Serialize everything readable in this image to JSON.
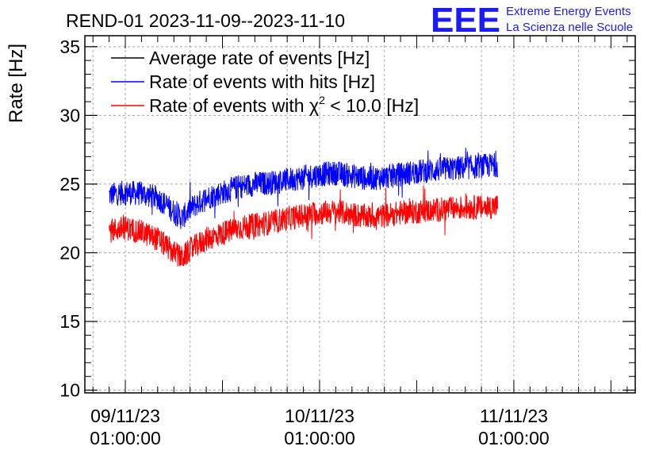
{
  "header": {
    "title": "REND-01 2023-11-09--2023-11-10",
    "logo_text": "EEE",
    "logo_line1": "Extreme Energy Events",
    "logo_line2": "La Scienza nelle Scuole"
  },
  "chart_data": {
    "type": "line",
    "title": "REND-01 2023-11-09--2023-11-10",
    "ylabel": "Rate [Hz]",
    "xlabel": "",
    "ylim": [
      9.8,
      35.8
    ],
    "xlim_hours": [
      -5,
      63
    ],
    "grid": true,
    "legend_position": "top-left",
    "y_ticks": [
      "10",
      "15",
      "20",
      "25",
      "30",
      "35"
    ],
    "y_tick_values": [
      10,
      15,
      20,
      25,
      30,
      35
    ],
    "x_ticks": [
      {
        "hour": 0,
        "date": "09/11/23",
        "time": "01:00:00"
      },
      {
        "hour": 24,
        "date": "10/11/23",
        "time": "01:00:00"
      },
      {
        "hour": 48,
        "date": "11/11/23",
        "time": "01:00:00"
      }
    ],
    "legend": [
      {
        "label": "Average rate of events [Hz]",
        "color": "#000000"
      },
      {
        "label": "Rate of events with hits [Hz]",
        "color": "#0000ff"
      },
      {
        "label": "Rate of events with",
        "chi_symbol": "χ",
        "superscript": "2",
        "label_suffix": " < 10.0 [Hz]",
        "color": "#ff0000"
      }
    ],
    "series": [
      {
        "name": "Rate of events with hits [Hz]",
        "color": "#0000ff",
        "x_hours": [
          -2,
          0,
          2,
          4,
          6,
          7,
          8,
          10,
          12,
          14,
          16,
          18,
          20,
          22,
          24,
          26,
          28,
          30,
          32,
          34,
          36,
          38,
          40,
          42,
          44,
          46
        ],
        "values": [
          24.2,
          24.4,
          24.3,
          24.0,
          23.0,
          22.5,
          23.2,
          24.0,
          24.4,
          24.8,
          25.0,
          25.1,
          25.3,
          25.5,
          25.7,
          25.8,
          25.6,
          25.4,
          25.5,
          25.7,
          25.9,
          26.0,
          26.1,
          26.2,
          26.3,
          26.4
        ],
        "noise_amplitude": 0.9
      },
      {
        "name": "Rate of events with χ2 < 10.0 [Hz]",
        "color": "#ff0000",
        "x_hours": [
          -2,
          0,
          2,
          4,
          6,
          7,
          8,
          10,
          12,
          14,
          16,
          18,
          20,
          22,
          24,
          26,
          28,
          30,
          32,
          34,
          36,
          38,
          40,
          42,
          44,
          46
        ],
        "values": [
          21.6,
          21.8,
          21.5,
          21.0,
          20.0,
          19.6,
          20.2,
          21.0,
          21.4,
          21.8,
          22.0,
          22.2,
          22.5,
          22.7,
          22.9,
          23.0,
          22.8,
          22.6,
          22.7,
          22.9,
          23.0,
          23.1,
          23.2,
          23.3,
          23.3,
          23.4
        ],
        "noise_amplitude": 0.9
      }
    ]
  }
}
